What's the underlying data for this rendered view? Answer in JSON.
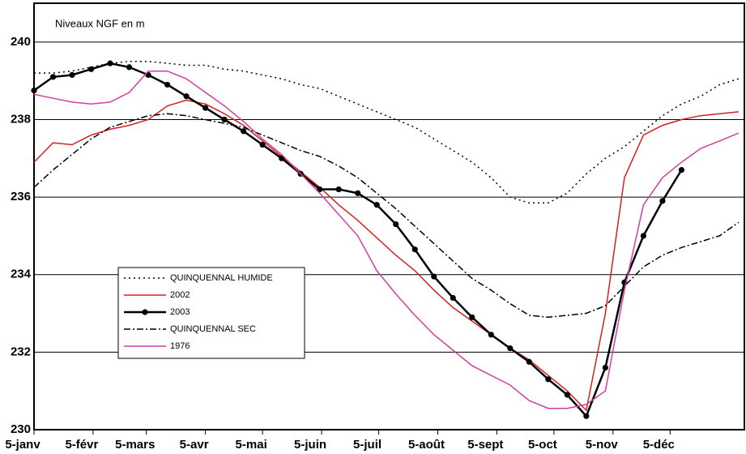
{
  "chart_data": {
    "type": "line",
    "annotation": "Niveaux NGF en m",
    "x": [
      5,
      15,
      25,
      35,
      45,
      55,
      65,
      75,
      85,
      95,
      105,
      115,
      125,
      135,
      145,
      155,
      165,
      175,
      185,
      195,
      205,
      215,
      225,
      235,
      245,
      255,
      265,
      275,
      285,
      295,
      305,
      315,
      325,
      335,
      345,
      355,
      365,
      375
    ],
    "xlim": [
      5,
      378
    ],
    "xticks": [
      {
        "value": 5,
        "label": "5-janv"
      },
      {
        "value": 36,
        "label": "5-févr"
      },
      {
        "value": 64,
        "label": "5-mars"
      },
      {
        "value": 95,
        "label": "5-avr"
      },
      {
        "value": 125,
        "label": "5-mai"
      },
      {
        "value": 156,
        "label": "5-juin"
      },
      {
        "value": 186,
        "label": "5-juil"
      },
      {
        "value": 217,
        "label": "5-août"
      },
      {
        "value": 248,
        "label": "5-sept"
      },
      {
        "value": 278,
        "label": "5-oct"
      },
      {
        "value": 309,
        "label": "5-nov"
      },
      {
        "value": 339,
        "label": "5-déc"
      }
    ],
    "ylim": [
      230,
      241
    ],
    "yticks": [
      230,
      232,
      234,
      236,
      238,
      240
    ],
    "grid": true,
    "series": [
      {
        "name": "QUINQUENNAL HUMIDE",
        "color": "#000000",
        "dash": "2,4",
        "width": 1.5,
        "values": [
          239.2,
          239.2,
          239.25,
          239.35,
          239.45,
          239.5,
          239.5,
          239.45,
          239.4,
          239.4,
          239.3,
          239.25,
          239.15,
          239.05,
          238.9,
          238.8,
          238.6,
          238.4,
          238.2,
          238.0,
          237.8,
          237.5,
          237.2,
          236.9,
          236.5,
          236.0,
          235.85,
          235.85,
          236.1,
          236.6,
          237.0,
          237.3,
          237.7,
          238.1,
          238.4,
          238.6,
          238.9,
          239.05
        ]
      },
      {
        "name": "2002",
        "color": "#d42020",
        "width": 1.5,
        "values": [
          236.9,
          237.4,
          237.35,
          237.6,
          237.75,
          237.85,
          238.0,
          238.35,
          238.5,
          238.4,
          238.15,
          237.85,
          237.45,
          237.05,
          236.65,
          236.25,
          235.8,
          235.4,
          234.95,
          234.5,
          234.1,
          233.6,
          233.15,
          232.8,
          232.45,
          232.1,
          231.8,
          231.4,
          231.0,
          230.5,
          233.0,
          236.5,
          237.6,
          237.85,
          238.0,
          238.1,
          238.15,
          238.2
        ]
      },
      {
        "name": "2003",
        "color": "#000000",
        "width": 2.5,
        "marker": true,
        "values": [
          238.75,
          239.1,
          239.15,
          239.3,
          239.45,
          239.35,
          239.15,
          238.9,
          238.6,
          238.3,
          238.0,
          237.7,
          237.35,
          237.0,
          236.6,
          236.2,
          236.2,
          236.1,
          235.8,
          235.3,
          234.65,
          233.95,
          233.4,
          232.9,
          232.45,
          232.1,
          231.75,
          231.3,
          230.9,
          230.35,
          231.6,
          233.8,
          235.0,
          235.9,
          236.7,
          null,
          null,
          null
        ]
      },
      {
        "name": "QUINQUENNAL SEC",
        "color": "#000000",
        "dash": "8,3,2,3",
        "width": 1.5,
        "values": [
          236.25,
          236.7,
          237.1,
          237.5,
          237.8,
          237.95,
          238.1,
          238.15,
          238.1,
          238.0,
          237.9,
          237.8,
          237.6,
          237.4,
          237.2,
          237.05,
          236.8,
          236.5,
          236.1,
          235.7,
          235.25,
          234.8,
          234.35,
          233.9,
          233.6,
          233.25,
          232.95,
          232.9,
          232.95,
          233.0,
          233.2,
          233.7,
          234.2,
          234.5,
          234.7,
          234.85,
          235.0,
          235.35
        ]
      },
      {
        "name": "1976",
        "color": "#d040a0",
        "width": 1.5,
        "values": [
          238.65,
          238.55,
          238.45,
          238.4,
          238.45,
          238.7,
          239.25,
          239.25,
          239.05,
          238.7,
          238.35,
          237.95,
          237.5,
          237.1,
          236.6,
          236.1,
          235.55,
          235.0,
          234.1,
          233.5,
          232.95,
          232.45,
          232.05,
          231.65,
          231.4,
          231.15,
          230.75,
          230.55,
          230.55,
          230.65,
          231.0,
          233.6,
          235.8,
          236.5,
          236.9,
          237.25,
          237.45,
          237.65
        ]
      }
    ]
  }
}
